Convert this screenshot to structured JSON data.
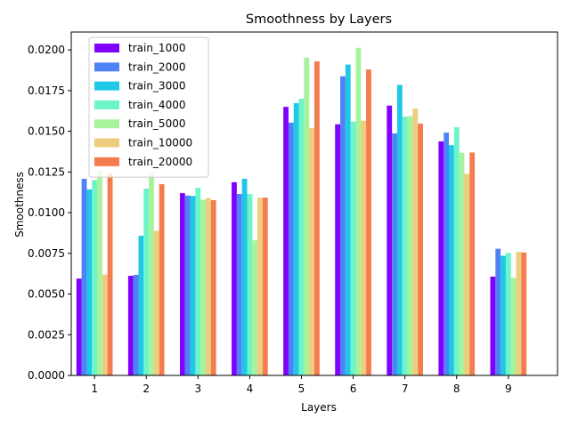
{
  "chart_data": {
    "type": "bar",
    "title": "Smoothness by Layers",
    "xlabel": "Layers",
    "ylabel": "Smoothness",
    "categories": [
      "1",
      "2",
      "3",
      "4",
      "5",
      "6",
      "7",
      "8",
      "9"
    ],
    "ylim": [
      0,
      0.0211
    ],
    "yticks": [
      "0.0000",
      "0.0025",
      "0.0050",
      "0.0075",
      "0.0100",
      "0.0125",
      "0.0150",
      "0.0175",
      "0.0200"
    ],
    "legend_position": "top-left",
    "grid": false,
    "series": [
      {
        "name": "train_1000",
        "color": "#8000ff",
        "values": [
          0.00595,
          0.00612,
          0.0112,
          0.01187,
          0.0165,
          0.01543,
          0.01658,
          0.01438,
          0.00607
        ]
      },
      {
        "name": "train_2000",
        "color": "#4f82f5",
        "values": [
          0.01208,
          0.00618,
          0.01105,
          0.01115,
          0.01553,
          0.01838,
          0.01487,
          0.01492,
          0.00778
        ]
      },
      {
        "name": "train_3000",
        "color": "#1ec8e6",
        "values": [
          0.01143,
          0.00858,
          0.01103,
          0.01208,
          0.01673,
          0.0191,
          0.01785,
          0.01415,
          0.00735
        ]
      },
      {
        "name": "train_4000",
        "color": "#6cf5c9",
        "values": [
          0.012,
          0.01148,
          0.01153,
          0.01115,
          0.017,
          0.0156,
          0.0159,
          0.01525,
          0.00752
        ]
      },
      {
        "name": "train_5000",
        "color": "#a6f39b",
        "values": [
          0.0126,
          0.0125,
          0.0108,
          0.0083,
          0.01953,
          0.02013,
          0.01593,
          0.01368,
          0.006
        ]
      },
      {
        "name": "train_10000",
        "color": "#eecd7f",
        "values": [
          0.0062,
          0.00888,
          0.0109,
          0.01092,
          0.0152,
          0.01565,
          0.0164,
          0.01238,
          0.0076
        ]
      },
      {
        "name": "train_20000",
        "color": "#f57c4e",
        "values": [
          0.01238,
          0.01175,
          0.01077,
          0.01092,
          0.0193,
          0.0188,
          0.01548,
          0.0137,
          0.00755
        ]
      }
    ]
  }
}
